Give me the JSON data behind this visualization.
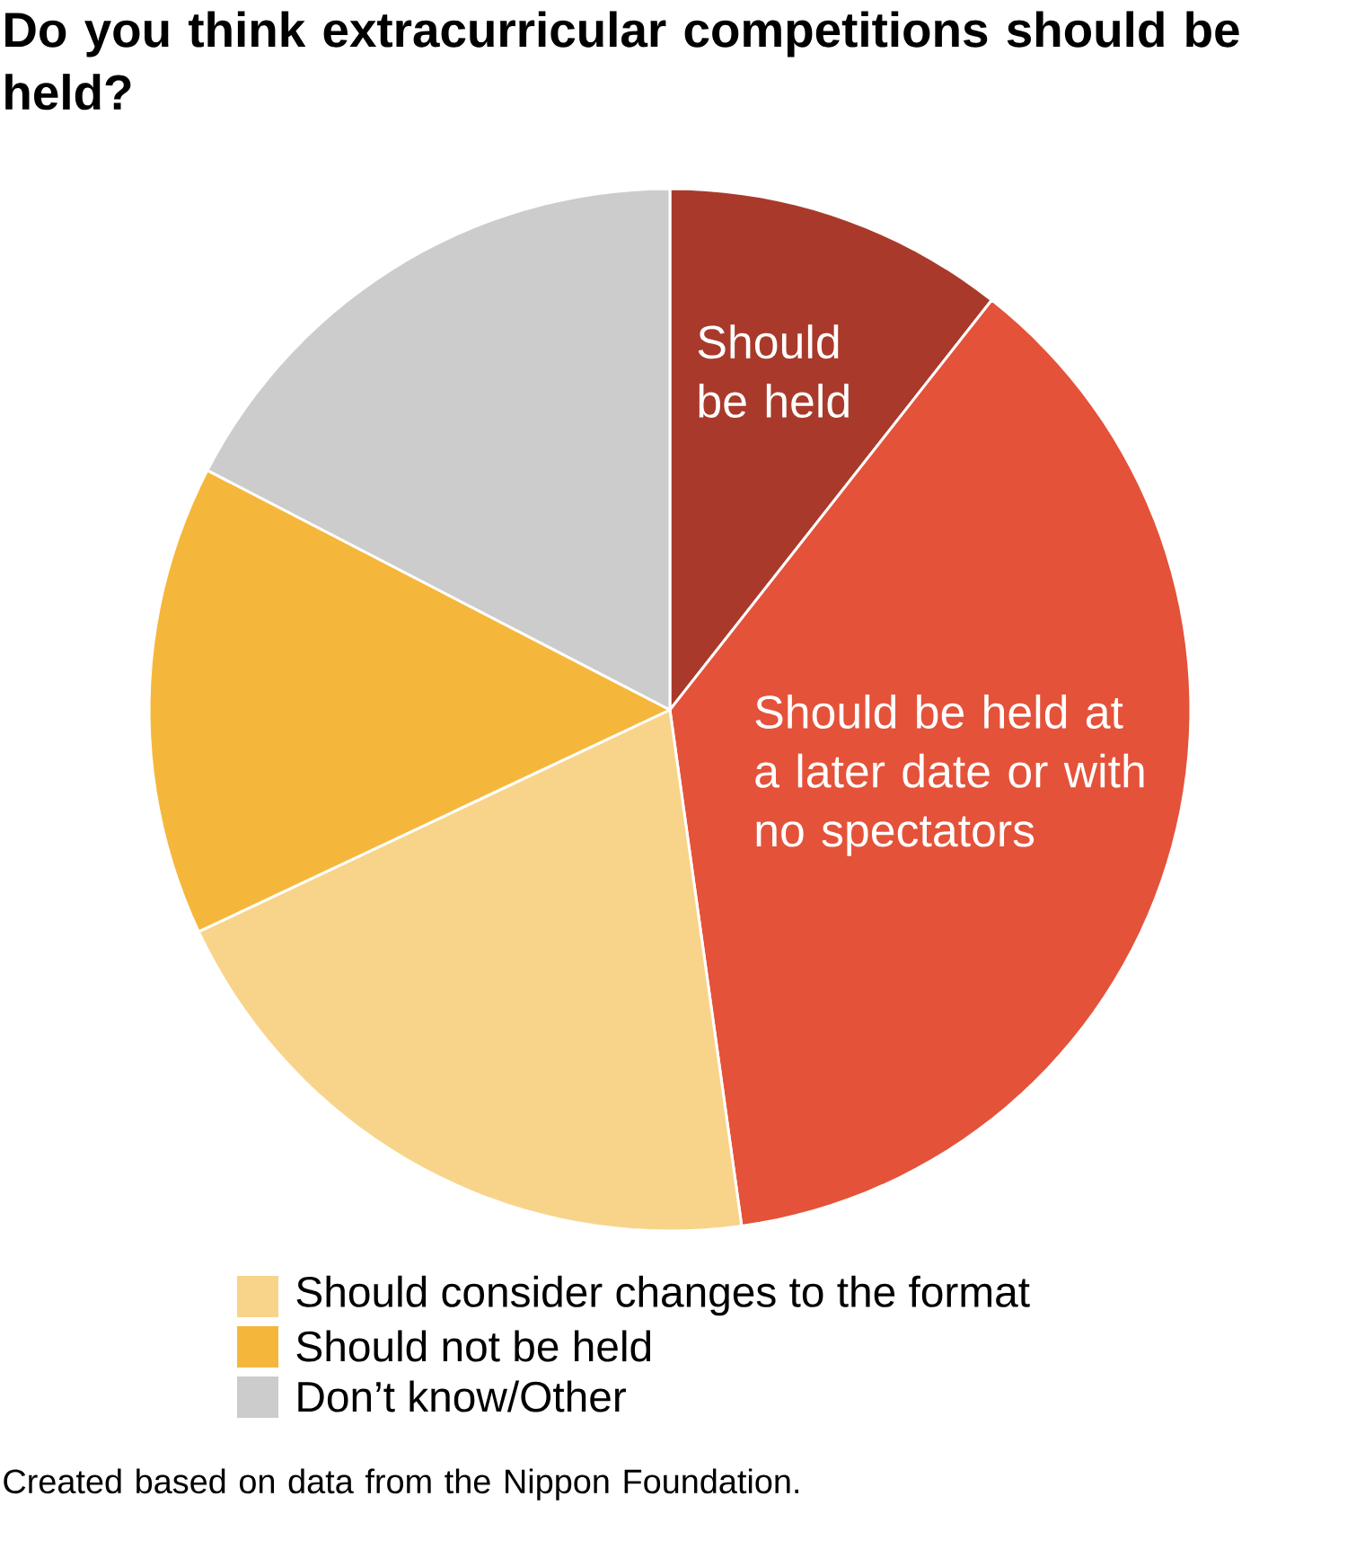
{
  "chart_data": {
    "type": "pie",
    "title": "Do you think extracurricular competitions should be held?",
    "categories": [
      "Should be held",
      "Should be held at a later date or with no spectators",
      "Should consider changes to the format",
      "Should not be held",
      "Don’t know/Other"
    ],
    "values": [
      10.6,
      37.2,
      20.2,
      14.6,
      17.4
    ],
    "colors": [
      "#a93a2b",
      "#e4523a",
      "#f8d48a",
      "#f5b73b",
      "#cccccc"
    ],
    "legend": "bottom",
    "annotations": [
      "Created based on data from the Nippon Foundation."
    ]
  }
}
